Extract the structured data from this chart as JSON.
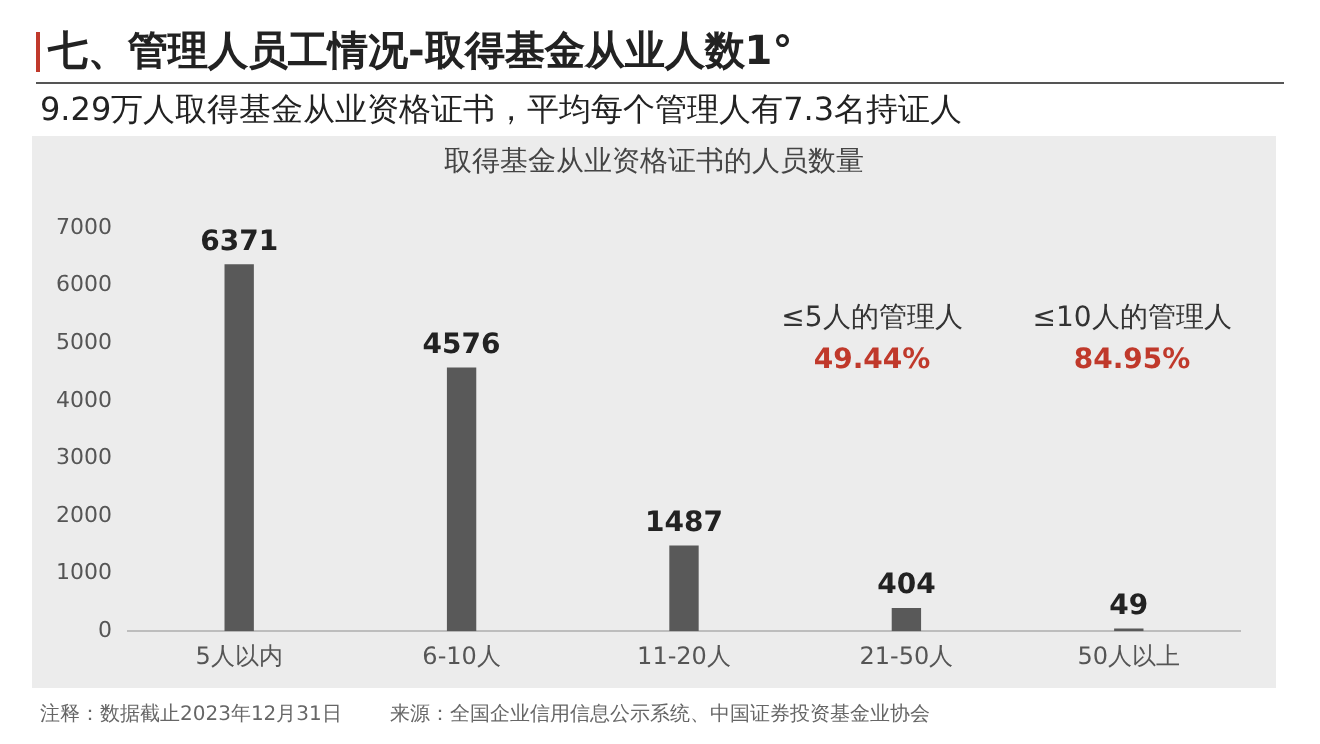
{
  "chart_data": {
    "type": "bar",
    "title": "七、管理人员工情况-取得基金从业人数1°",
    "subtitle": "9.29万人取得基金从业资格证书，平均每个管理人有7.3名持证人",
    "categories": [
      "5人以内",
      "6-10人",
      "11-20人",
      "21-50人",
      "50人以上"
    ],
    "series": [
      {
        "color": "#595959",
        "values": [
          6371,
          4576,
          1487,
          404,
          49
        ]
      }
    ],
    "ylim": [
      0,
      7000
    ],
    "yticks": [
      0,
      1000,
      2000,
      3000,
      4000,
      5000,
      6000,
      7000
    ],
    "grid": false,
    "legend": false,
    "data_labels": true,
    "annotations": [
      "取得基金从业资格证书的人员数量",
      "≤5人的管理人",
      "49.44%",
      "≤10人的管理人",
      "84.95%",
      "注释：数据截止2023年12月31日",
      "来源：全国企业信用信息公示系统、中国证券投资基金业协会"
    ]
  }
}
